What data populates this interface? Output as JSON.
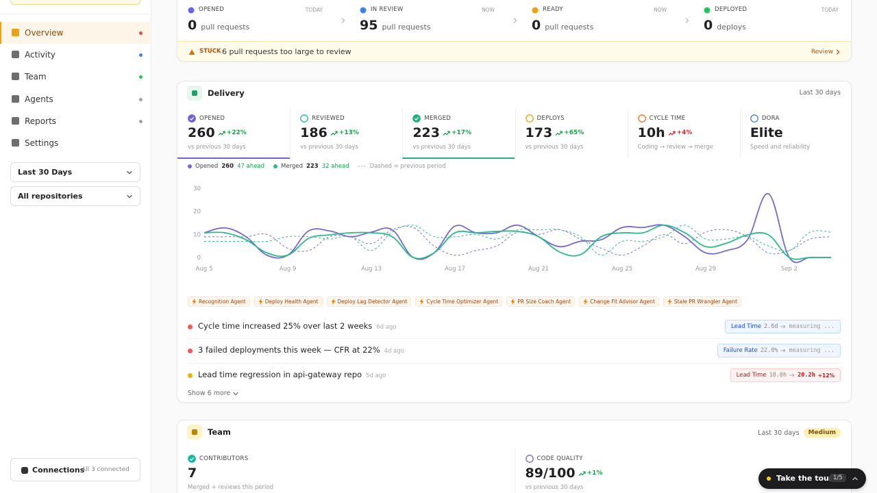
{
  "sidebar": {
    "nav": [
      {
        "label": "Overview",
        "dot": "#e5484d",
        "active": true
      },
      {
        "label": "Activity",
        "dot": "#3b82f6"
      },
      {
        "label": "Team",
        "dot": "#22c55e"
      },
      {
        "label": "Agents",
        "dot": "#a1a1aa"
      },
      {
        "label": "Reports",
        "dot": "#a1a1aa"
      },
      {
        "label": "Settings"
      }
    ],
    "filters": [
      "Last 30 Days",
      "All repositories"
    ],
    "connections": {
      "label": "Connections",
      "status": "All 3 connected"
    }
  },
  "pipeline": {
    "stages": [
      {
        "label": "OPENED",
        "when": "TODAY",
        "count": 0,
        "unit": "pull requests",
        "color": "#6366f1"
      },
      {
        "label": "IN REVIEW",
        "when": "NOW",
        "count": 95,
        "unit": "pull requests",
        "color": "#3b82f6"
      },
      {
        "label": "READY",
        "when": "NOW",
        "count": 0,
        "unit": "pull requests",
        "color": "#f59e0b"
      },
      {
        "label": "DEPLOYED",
        "when": "TODAY",
        "count": 0,
        "unit": "deploys",
        "color": "#22c55e"
      }
    ],
    "alert": {
      "tag": "STUCK",
      "text": "6 pull requests too large to review",
      "action": "Review"
    }
  },
  "delivery": {
    "title": "Delivery",
    "period": "Last 30 days",
    "metrics": [
      {
        "label": "OPENED",
        "value": 260,
        "change": "+22%",
        "change_color": "#16a34a",
        "note": "vs previous 30 days",
        "color": "#6e62d8",
        "filled": true,
        "selected": true
      },
      {
        "label": "REVIEWED",
        "value": 186,
        "change": "+13%",
        "change_color": "#16a34a",
        "note": "vs previous 30 days",
        "color": "#14b8a6",
        "filled": false
      },
      {
        "label": "MERGED",
        "value": 223,
        "change": "+17%",
        "change_color": "#16a34a",
        "note": "vs previous 30 days",
        "color": "#22b07d",
        "filled": true,
        "selected": true
      },
      {
        "label": "DEPLOYS",
        "value": 173,
        "change": "+65%",
        "change_color": "#16a34a",
        "note": "vs previous 30 days",
        "color": "#f59e0b",
        "filled": false
      },
      {
        "label": "CYCLE TIME",
        "value": "10h",
        "change": "+4%",
        "change_color": "#dc2626",
        "note": "Coding → review → merge",
        "color": "#f97316",
        "filled": false
      },
      {
        "label": "DORA",
        "value": "Elite",
        "note": "Speed and reliability",
        "color": "#3b82f6",
        "filled": false
      }
    ],
    "agents": [
      "Recognition Agent",
      "Deploy Health Agent",
      "Deploy Lag Detector Agent",
      "Cycle Time Optimizer Agent",
      "PR Size Coach Agent",
      "Change Fit Advisor Agent",
      "Stale PR Wrangler Agent"
    ],
    "insights": [
      {
        "text": "Cycle time increased 25% over last 2 weeks",
        "age": "6d ago",
        "dot": "#ef5b5b",
        "badge": {
          "label": "Lead Time",
          "from": "2.6d",
          "to": "measuring ...",
          "tone": "blue"
        }
      },
      {
        "text": "3 failed deployments this week — CFR at 22%",
        "age": "4d ago",
        "dot": "#ef5b5b",
        "badge": {
          "label": "Failure Rate",
          "from": "22.0%",
          "to": "measuring ...",
          "tone": "blue"
        }
      },
      {
        "text": "Lead time regression in api-gateway repo",
        "age": "5d ago",
        "dot": "#eab308",
        "badge": {
          "label": "Lead Time",
          "from": "18.0h",
          "to": "20.2h",
          "change": "+12%",
          "tone": "red"
        }
      }
    ],
    "show_more": "Show 6 more"
  },
  "chart_data": {
    "type": "line",
    "categories": [
      "Aug 5",
      null,
      null,
      null,
      "Aug 9",
      null,
      null,
      null,
      "Aug 13",
      null,
      null,
      null,
      "Aug 17",
      null,
      null,
      null,
      "Aug 21",
      null,
      null,
      null,
      "Aug 25",
      null,
      null,
      null,
      "Aug 29",
      null,
      null,
      null,
      "Sep 2",
      null,
      null
    ],
    "series": [
      {
        "name": "Opened",
        "color": "#7468d8",
        "total": 260,
        "ahead": "47 ahead",
        "values": [
          10.7,
          12.8,
          9,
          1,
          1,
          11.5,
          11.5,
          9,
          11,
          12,
          0,
          2,
          13.6,
          10.7,
          10.7,
          14,
          9,
          4.7,
          7,
          7.7,
          13,
          13,
          14,
          9,
          2,
          3,
          7.7,
          27.6,
          0,
          0,
          0
        ],
        "previous": [
          9,
          9,
          9,
          10,
          4,
          3,
          9,
          9,
          6,
          12,
          13,
          5,
          1,
          3,
          5,
          11,
          10,
          12,
          8,
          4,
          1,
          5,
          10,
          6,
          11,
          12,
          9,
          2,
          3,
          8,
          9
        ]
      },
      {
        "name": "Merged",
        "color": "#2bb88a",
        "total": 223,
        "ahead": "32 ahead",
        "values": [
          10.7,
          10.7,
          7.7,
          2,
          1,
          8.3,
          9.8,
          10.7,
          10.7,
          9,
          0,
          2,
          10.7,
          10.7,
          11.3,
          11.3,
          9,
          2.4,
          1.2,
          9,
          10.7,
          10.7,
          14,
          10.7,
          4.7,
          6.2,
          9.8,
          9.8,
          0,
          0,
          0
        ],
        "previous": [
          7,
          7,
          7,
          7,
          9,
          9,
          8,
          9,
          3,
          11,
          14,
          9,
          9,
          10,
          8,
          12,
          12,
          12,
          9,
          1,
          7,
          7,
          9,
          14,
          8,
          8,
          9,
          5,
          3,
          11,
          11
        ]
      }
    ],
    "note": "Dashed = previous period",
    "ylim": [
      0,
      30
    ],
    "yticks": [
      0,
      10,
      20,
      30
    ],
    "grid": false
  },
  "team": {
    "title": "Team",
    "period": "Last 30 days",
    "level": "Medium",
    "metrics": [
      {
        "label": "CONTRIBUTORS",
        "value": 7,
        "note": "Merged + reviews this period",
        "color": "#14b8a6",
        "filled": true
      },
      {
        "label": "CODE QUALITY",
        "value": "89/100",
        "change": "+1%",
        "change_color": "#16a34a",
        "note": "vs previous 30 days",
        "color": "#7468d8",
        "filled": false
      }
    ]
  },
  "tour": {
    "label": "Take the tour",
    "step": "1/5"
  }
}
